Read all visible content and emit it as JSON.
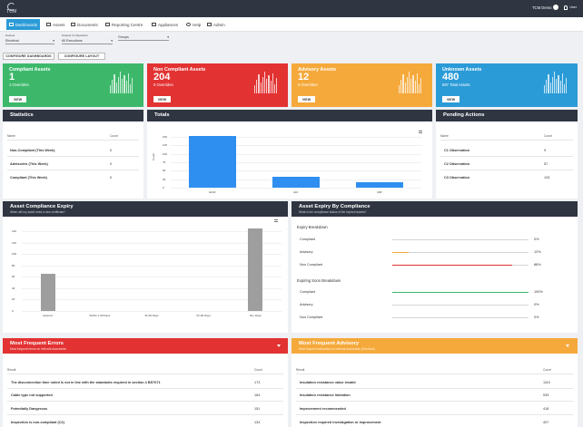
{
  "app": {
    "logo_text": "TCM"
  },
  "user": {
    "name": "TCM Demo",
    "sub": "User"
  },
  "nav": {
    "items": [
      {
        "label": "Dashboards",
        "icon": "dashboard-icon",
        "active": true
      },
      {
        "label": "Assets",
        "icon": "assets-icon"
      },
      {
        "label": "Documents",
        "icon": "documents-icon"
      },
      {
        "label": "Reporting Centre",
        "icon": "reporting-icon"
      },
      {
        "label": "Appliances",
        "icon": "appliances-icon"
      },
      {
        "label": "Help",
        "icon": "help-icon"
      },
      {
        "label": "Admin",
        "icon": "admin-icon"
      }
    ]
  },
  "filters": [
    {
      "label": "Dataset",
      "value": "Electrical"
    },
    {
      "label": "Dataset Configuration",
      "value": "All Executions"
    },
    {
      "label": "",
      "value": "Groups"
    }
  ],
  "buttons": {
    "configure_dashboards": "CONFIGURE DASHBOARDS",
    "configure_layout": "CONFIGURE LAYOUT"
  },
  "tiles": [
    {
      "title": "Compliant Assets",
      "value": "1",
      "sub": "1 Overriden",
      "view": "VIEW",
      "color": "#3db86b"
    },
    {
      "title": "Non Compliant Assets",
      "value": "204",
      "sub": "0 Overriden",
      "view": "VIEW",
      "color": "#e23232"
    },
    {
      "title": "Advisory Assets",
      "value": "12",
      "sub": "0 Overriden",
      "view": "VIEW",
      "color": "#f5a93b"
    },
    {
      "title": "Unknown Assets",
      "value": "480",
      "sub": "697 Total Assets",
      "view": "VIEW",
      "color": "#2b9bd7"
    }
  ],
  "statistics": {
    "title": "Statistics",
    "col_name": "Name",
    "col_count": "Count",
    "rows": [
      {
        "name": "Non-Compliant (This Week)",
        "count": "0"
      },
      {
        "name": "Advisories (This Week)",
        "count": "0"
      },
      {
        "name": "Compliant (This Week)",
        "count": "0"
      }
    ]
  },
  "totals": {
    "title": "Totals",
    "ylabel": "Count",
    "ticks": [
      "0",
      "25",
      "50",
      "75",
      "100",
      "125",
      "150"
    ]
  },
  "pending": {
    "title": "Pending Actions",
    "col_name": "Name",
    "col_count": "Count",
    "rows": [
      {
        "name": "C1 Observation",
        "count": "9"
      },
      {
        "name": "C2 Observation",
        "count": "57"
      },
      {
        "name": "C3 Observation",
        "count": "133"
      }
    ]
  },
  "expiry": {
    "title": "Asset Compliance Expiry",
    "subtitle": "When will my asset need a new certificate?",
    "ticks": [
      "0",
      "20",
      "40",
      "60",
      "80",
      "100",
      "120",
      "140"
    ]
  },
  "by_compliance": {
    "title": "Asset Expiry By Compliance",
    "subtitle": "What is the compliance status of the expired assets?",
    "expiry_title": "Expiry Breakdown",
    "expiring_title": "Expiring Soon Breakdown",
    "expiry_rows": [
      {
        "label": "Compliant",
        "pct": "0%",
        "value": 0,
        "color": "#3db86b"
      },
      {
        "label": "Advisory",
        "pct": "12%",
        "value": 12,
        "color": "#f5a93b"
      },
      {
        "label": "Non Compliant",
        "pct": "88%",
        "value": 88,
        "color": "#e23232"
      }
    ],
    "expiring_rows": [
      {
        "label": "Compliant",
        "pct": "100%",
        "value": 100,
        "color": "#3db86b"
      },
      {
        "label": "Advisory",
        "pct": "0%",
        "value": 0,
        "color": "#f5a93b"
      },
      {
        "label": "Non Compliant",
        "pct": "0%",
        "value": 0,
        "color": "#e23232"
      }
    ]
  },
  "errors": {
    "title": "Most Frequent Errors",
    "subtitle": "Most frequent errors on relevant documents",
    "col_result": "Result",
    "col_count": "Count",
    "rows": [
      {
        "result": "The disconnection time noted is not in line with the standards required in section 4 BS7671",
        "count": "173"
      },
      {
        "result": "Cable type not supported",
        "count": "164"
      },
      {
        "result": "Potentially Dangerous",
        "count": "151"
      },
      {
        "result": "Inspection is non-compliant (C2)",
        "count": "134"
      }
    ]
  },
  "advisory": {
    "title": "Most Frequent Advisory",
    "subtitle": "Most frequent advisories on relevant documents (Electrical)",
    "col_result": "Result",
    "col_count": "Count",
    "rows": [
      {
        "result": "Insulation resistance value invalid",
        "count": "1110"
      },
      {
        "result": "Insulation resistance limitation",
        "count": "539"
      },
      {
        "result": "Improvement recommended",
        "count": "418"
      },
      {
        "result": "Inspection required investigation or improvement",
        "count": "407"
      }
    ]
  },
  "chart_data": [
    {
      "type": "bar",
      "title": "Totals",
      "ylabel": "Count",
      "categories": [
        "EICR",
        "EIC",
        "MW"
      ],
      "values": [
        153,
        32,
        17
      ],
      "ylim": [
        0,
        150
      ],
      "color": "#2f8ff0"
    },
    {
      "type": "bar",
      "title": "Asset Compliance Expiry",
      "categories": [
        "Expired",
        "Within 1-30 Days",
        "31-60 Days",
        "61-90 Days",
        "91+ Days"
      ],
      "values": [
        66,
        0,
        0,
        0,
        145
      ],
      "ylim": [
        0,
        140
      ],
      "color": "#9e9e9e"
    }
  ]
}
